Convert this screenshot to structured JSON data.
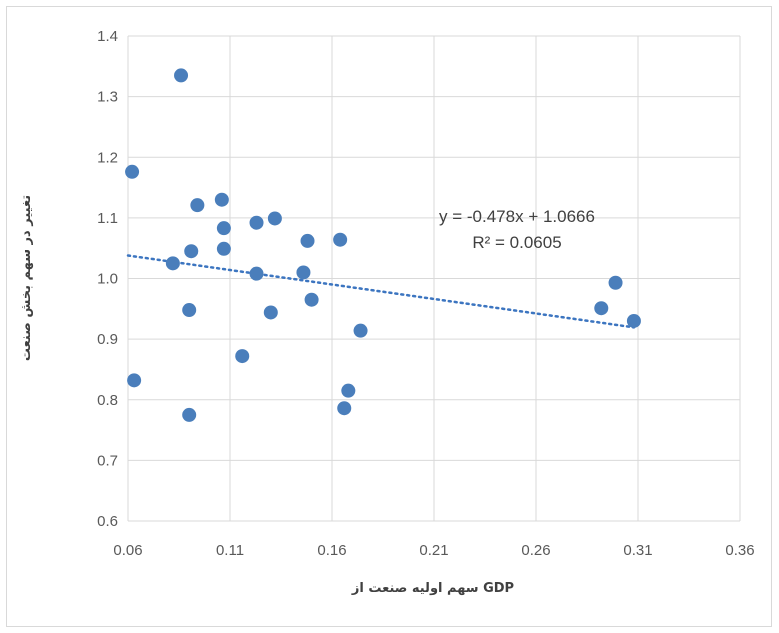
{
  "chart_data": {
    "type": "scatter",
    "title": "",
    "xlabel": "سهم اولیه صنعت از GDP",
    "ylabel": "تغییر در سهم بخش صنعت",
    "xlim": [
      0.06,
      0.36
    ],
    "ylim": [
      0.6,
      1.4
    ],
    "x_ticks": [
      "0.06",
      "0.11",
      "0.16",
      "0.21",
      "0.26",
      "0.31",
      "0.36"
    ],
    "y_ticks": [
      "0.6",
      "0.7",
      "0.8",
      "0.9",
      "1.0",
      "1.1",
      "1.2",
      "1.3",
      "1.4"
    ],
    "grid": true,
    "legend": "none",
    "series": [
      {
        "points": [
          [
            0.086,
            1.335
          ],
          [
            0.062,
            1.176
          ],
          [
            0.106,
            1.13
          ],
          [
            0.094,
            1.121
          ],
          [
            0.107,
            1.083
          ],
          [
            0.123,
            1.092
          ],
          [
            0.132,
            1.099
          ],
          [
            0.148,
            1.062
          ],
          [
            0.164,
            1.064
          ],
          [
            0.091,
            1.045
          ],
          [
            0.107,
            1.049
          ],
          [
            0.082,
            1.025
          ],
          [
            0.123,
            1.008
          ],
          [
            0.146,
            1.01
          ],
          [
            0.15,
            0.965
          ],
          [
            0.09,
            0.948
          ],
          [
            0.13,
            0.944
          ],
          [
            0.174,
            0.914
          ],
          [
            0.116,
            0.872
          ],
          [
            0.063,
            0.832
          ],
          [
            0.168,
            0.815
          ],
          [
            0.166,
            0.786
          ],
          [
            0.09,
            0.775
          ],
          [
            0.292,
            0.951
          ],
          [
            0.299,
            0.993
          ],
          [
            0.308,
            0.93
          ]
        ]
      }
    ],
    "trendline": {
      "slope": -0.478,
      "intercept": 1.0666,
      "x_range": [
        0.06,
        0.308
      ],
      "equation": "y = -0.478x + 1.0666",
      "r_squared": "R² = 0.0605"
    },
    "colors": {
      "marker": "#4a7ebb",
      "trendline": "#3c75c0",
      "grid": "#d9d9d9"
    }
  }
}
